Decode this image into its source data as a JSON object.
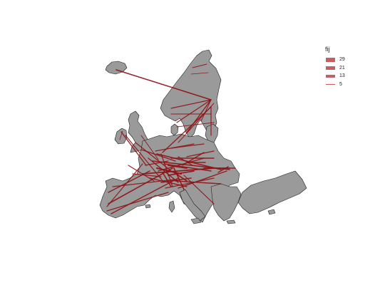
{
  "legend": {
    "title": "fij",
    "entries": [
      {
        "label": "29",
        "value": 29
      },
      {
        "label": "21",
        "value": 21
      },
      {
        "label": "13",
        "value": 13
      },
      {
        "label": "5",
        "value": 5
      }
    ]
  },
  "colors": {
    "land": "#9a9a9a",
    "border": "#1e1e1e",
    "flow": "#8e1418",
    "legend_swatch": "#c45f64",
    "background": "#ffffff"
  }
}
